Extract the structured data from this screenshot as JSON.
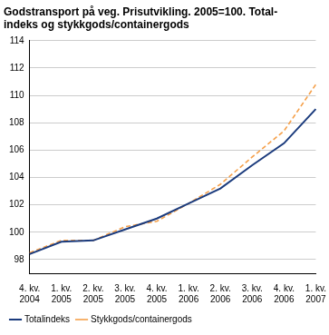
{
  "chart_data": {
    "type": "line",
    "title": [
      "Godstransport på veg. Prisutvikling. 2005=100. Total-",
      "indeks og stykkgods/containergods"
    ],
    "categories": [
      [
        "4. kv.",
        "2004"
      ],
      [
        "1. kv.",
        "2005"
      ],
      [
        "2. kv.",
        "2005"
      ],
      [
        "3. kv.",
        "2005"
      ],
      [
        "4. kv.",
        "2005"
      ],
      [
        "1. kv.",
        "2006"
      ],
      [
        "2. kv.",
        "2006"
      ],
      [
        "3. kv.",
        "2006"
      ],
      [
        "4. kv.",
        "2006"
      ],
      [
        "1. kv.",
        "2007"
      ]
    ],
    "series": [
      {
        "name": "Totalindeks",
        "color": "#1b3b7d",
        "line_style": "solid",
        "values": [
          98.4,
          99.3,
          99.4,
          100.2,
          101.0,
          102.1,
          103.2,
          104.9,
          106.5,
          109.0
        ]
      },
      {
        "name": "Stykkgods/containergods",
        "color": "#f5a04a",
        "line_style": "dashed",
        "values": [
          98.5,
          99.4,
          99.4,
          100.4,
          100.8,
          102.1,
          103.5,
          105.5,
          107.4,
          110.8
        ]
      }
    ],
    "ylim": [
      97,
      114
    ],
    "yticks": [
      98,
      100,
      102,
      104,
      106,
      108,
      110,
      112,
      114
    ],
    "grid": true,
    "legend": "bottom"
  }
}
